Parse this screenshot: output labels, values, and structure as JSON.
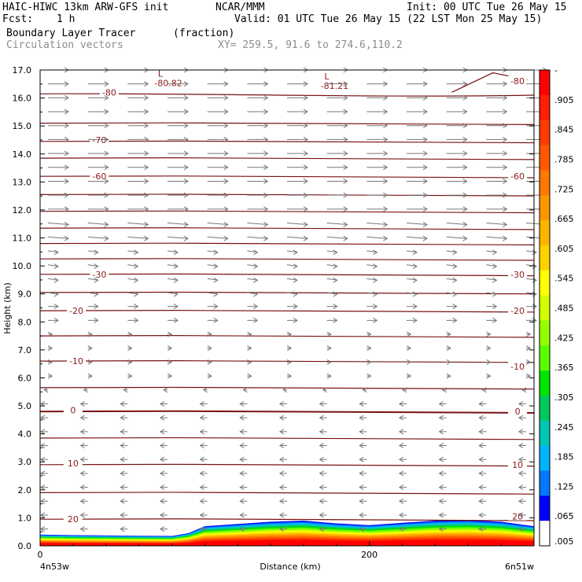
{
  "header": {
    "model": "HAIC-HIWC 13km ARW-GFS init",
    "org": "NCAR/MMM",
    "init": "Init: 00 UTC Tue 26 May 15",
    "fcst_label": "Fcst:",
    "fcst_value": "1 h",
    "valid": "Valid: 01 UTC Tue 26 May 15 (22 LST Mon 25 May 15)",
    "field1": "Boundary Layer Tracer",
    "field1_units": "(fraction)",
    "field2": "Circulation vectors",
    "xy": "XY= 259.5, 91.6 to 274.6,110.2"
  },
  "chart_data": {
    "type": "heatmap",
    "xlabel": "Distance (km)",
    "ylabel": "Height (km)",
    "xlim": [
      0,
      300
    ],
    "ylim": [
      0,
      17
    ],
    "x_ticks": [
      {
        "value": 0,
        "label": "0"
      },
      {
        "value": 200,
        "label": "200"
      }
    ],
    "x_end_labels": {
      "left": "4n53w",
      "right": "6n51w"
    },
    "y_ticks": [
      "0.0",
      "1.0",
      "2.0",
      "3.0",
      "4.0",
      "5.0",
      "6.0",
      "7.0",
      "8.0",
      "9.0",
      "10.0",
      "11.0",
      "12.0",
      "13.0",
      "14.0",
      "15.0",
      "16.0",
      "17.0"
    ],
    "colorbar": {
      "labels": [
        "-",
        ".905",
        ".845",
        ".785",
        ".725",
        ".665",
        ".605",
        ".545",
        ".485",
        ".425",
        ".365",
        ".305",
        ".245",
        ".185",
        ".125",
        ".065",
        ".005"
      ],
      "colors": [
        "#ff0000",
        "#ff1e00",
        "#ff3c00",
        "#ff5a00",
        "#ff7800",
        "#ff9600",
        "#ffb400",
        "#ffd200",
        "#ffff00",
        "#d2ff00",
        "#96ff00",
        "#5aff00",
        "#00e600",
        "#00c85a",
        "#00c8b4",
        "#00b4ff",
        "#0078ff",
        "#0000ff",
        "#ffffff"
      ]
    },
    "tracer_surface": [
      {
        "x": 0,
        "top": 0.4
      },
      {
        "x": 20,
        "top": 0.38
      },
      {
        "x": 60,
        "top": 0.36
      },
      {
        "x": 80,
        "top": 0.35
      },
      {
        "x": 90,
        "top": 0.45
      },
      {
        "x": 100,
        "top": 0.7
      },
      {
        "x": 120,
        "top": 0.78
      },
      {
        "x": 140,
        "top": 0.86
      },
      {
        "x": 160,
        "top": 0.9
      },
      {
        "x": 180,
        "top": 0.8
      },
      {
        "x": 200,
        "top": 0.74
      },
      {
        "x": 220,
        "top": 0.82
      },
      {
        "x": 240,
        "top": 0.9
      },
      {
        "x": 260,
        "top": 0.92
      },
      {
        "x": 280,
        "top": 0.86
      },
      {
        "x": 300,
        "top": 0.7
      }
    ],
    "isotherm_labels": [
      {
        "text": "-80",
        "x": 42,
        "y": 16.2
      },
      {
        "text": "-80",
        "x": 290,
        "y": 16.6
      },
      {
        "text": "-70",
        "x": 36,
        "y": 14.5
      },
      {
        "text": "-60",
        "x": 36,
        "y": 13.2
      },
      {
        "text": "-60",
        "x": 290,
        "y": 13.2
      },
      {
        "text": "-30",
        "x": 36,
        "y": 9.7
      },
      {
        "text": "-30",
        "x": 290,
        "y": 9.7
      },
      {
        "text": "-20",
        "x": 22,
        "y": 8.4
      },
      {
        "text": "-20",
        "x": 290,
        "y": 8.4
      },
      {
        "text": "-10",
        "x": 22,
        "y": 6.6
      },
      {
        "text": "-10",
        "x": 290,
        "y": 6.4
      },
      {
        "text": "0",
        "x": 20,
        "y": 4.85
      },
      {
        "text": "0",
        "x": 290,
        "y": 4.8
      },
      {
        "text": "10",
        "x": 20,
        "y": 2.95
      },
      {
        "text": "10",
        "x": 290,
        "y": 2.9
      },
      {
        "text": "20",
        "x": 20,
        "y": 0.95
      },
      {
        "text": "20",
        "x": 290,
        "y": 1.05
      }
    ],
    "lows": [
      {
        "symbol": "L",
        "value": "-80.82",
        "x": 75,
        "y": 16.7
      },
      {
        "symbol": "L",
        "value": "-81.21",
        "x": 176,
        "y": 16.6
      }
    ]
  }
}
